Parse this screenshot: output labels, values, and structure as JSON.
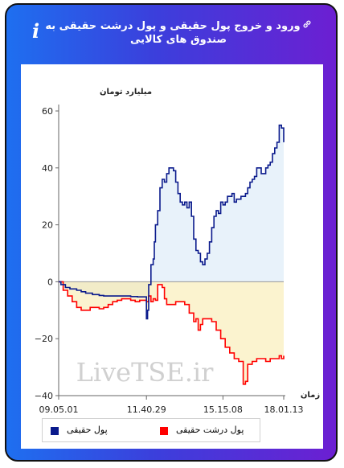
{
  "header": {
    "title": "ورود و خروج پول حقیقی و پول درشت حقیقی به صندوق های کالایی",
    "info_glyph": "i"
  },
  "watermark": "LiveTSE.ir",
  "legend": {
    "items": [
      {
        "label": "پول حقیقی",
        "color": "#0a1a8c"
      },
      {
        "label": "پول درشت حقیقی",
        "color": "#ff0000"
      }
    ]
  },
  "chart_data": {
    "type": "area",
    "ylabel": "میلیارد تومان",
    "xlabel": "زمان",
    "ylim": [
      -40,
      60
    ],
    "yticks": [
      -40,
      -20,
      0,
      20,
      40,
      60
    ],
    "x_range": [
      0,
      100
    ],
    "xticks": [
      {
        "pos": 0,
        "label": "09.05.01"
      },
      {
        "pos": 39,
        "label": "11.40.29"
      },
      {
        "pos": 73,
        "label": "15.15.08"
      },
      {
        "pos": 100,
        "label": "18.01.13"
      }
    ],
    "grid": false,
    "series": [
      {
        "name": "پول حقیقی",
        "color": "#0a1a8c",
        "fill": "#e8f2fa",
        "fill_negative": "#f2ecc8",
        "x": [
          0,
          1,
          3,
          5,
          8,
          10,
          12,
          15,
          18,
          20,
          24,
          28,
          32,
          35,
          38,
          39,
          39.5,
          40,
          41,
          42,
          42.5,
          43,
          44,
          45,
          46,
          47,
          48,
          49,
          50,
          51,
          52,
          53,
          54,
          55,
          56,
          57,
          58,
          59,
          60,
          61,
          62,
          63,
          64,
          65,
          66,
          67,
          68,
          69,
          70,
          71,
          72,
          73,
          74,
          75,
          76,
          77,
          78,
          79,
          80,
          81,
          82,
          83,
          84,
          85,
          86,
          87,
          88,
          89,
          90,
          91,
          92,
          93,
          94,
          95,
          96,
          97,
          98,
          99,
          100
        ],
        "y": [
          0,
          -1,
          -2,
          -2.5,
          -3,
          -3.5,
          -4,
          -4.5,
          -4.8,
          -5,
          -5,
          -5,
          -5.2,
          -5.3,
          -5.3,
          -13,
          -10,
          -1,
          6,
          8,
          14,
          20,
          25,
          33,
          36,
          35,
          38,
          40,
          40,
          39,
          35,
          31,
          28,
          27,
          28,
          26,
          28,
          23,
          15,
          11,
          10,
          7,
          6,
          8,
          10,
          14,
          19,
          23,
          25,
          24,
          28,
          27,
          28,
          30,
          30,
          31,
          28,
          29,
          29,
          30,
          30,
          31,
          33,
          35,
          36,
          37,
          40,
          40,
          38,
          38,
          40,
          41,
          42,
          45,
          47,
          49,
          55,
          54,
          49
        ]
      },
      {
        "name": "پول درشت حقیقی",
        "color": "#ff0000",
        "fill": "#fbf3cf",
        "x": [
          0,
          2,
          4,
          6,
          8,
          10,
          12,
          14,
          16,
          18,
          20,
          22,
          24,
          26,
          28,
          30,
          32,
          34,
          36,
          38,
          39,
          40,
          41,
          42,
          43,
          44,
          45,
          46,
          47,
          48,
          50,
          52,
          54,
          56,
          58,
          60,
          61,
          62,
          63,
          64,
          66,
          68,
          70,
          72,
          74,
          76,
          78,
          80,
          81,
          82,
          83,
          84,
          86,
          88,
          90,
          92,
          94,
          96,
          98,
          99,
          100
        ],
        "y": [
          0,
          -3,
          -5,
          -7,
          -9,
          -10,
          -10,
          -9,
          -9,
          -9.5,
          -9,
          -8,
          -7,
          -6.5,
          -6,
          -6,
          -6.5,
          -7,
          -6.5,
          -6.5,
          -7,
          -5,
          -7,
          -6,
          -6.5,
          -1,
          -1,
          -2,
          -6,
          -8,
          -8,
          -7,
          -7,
          -8,
          -11,
          -14,
          -13,
          -17,
          -15,
          -13,
          -13,
          -14,
          -17,
          -20,
          -23,
          -25,
          -27,
          -28,
          -28,
          -36,
          -35,
          -29,
          -28,
          -27,
          -27,
          -28,
          -27,
          -27,
          -26,
          -27,
          -26
        ]
      }
    ]
  }
}
